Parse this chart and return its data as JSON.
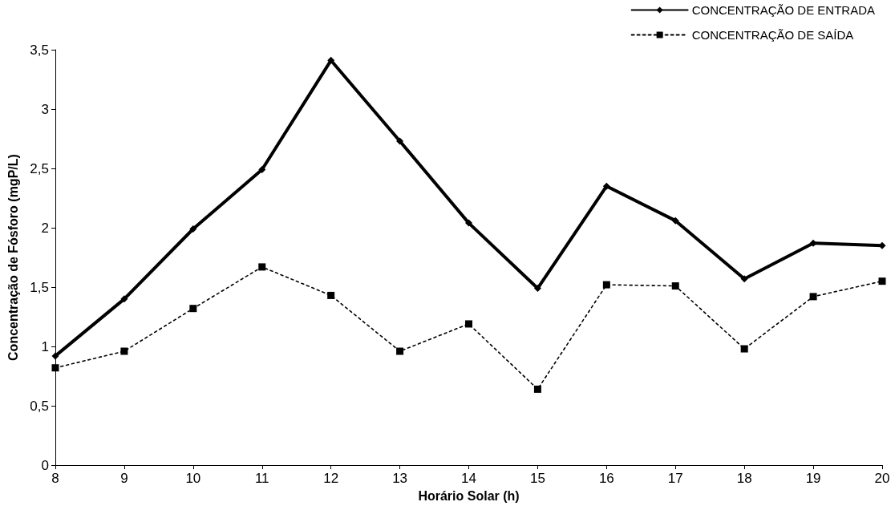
{
  "chart_data": {
    "type": "line",
    "xlabel": "Horário Solar (h)",
    "ylabel": "Concentração de Fósforo (mgP/L)",
    "x": [
      8,
      9,
      10,
      11,
      12,
      13,
      14,
      15,
      16,
      17,
      18,
      19,
      20
    ],
    "series": [
      {
        "name": "CONCENTRAÇÃO DE ENTRADA",
        "color": "#000000",
        "marker": "diamond",
        "line_style": "solid",
        "values": [
          0.92,
          1.4,
          1.99,
          2.49,
          3.41,
          2.73,
          2.04,
          1.49,
          2.35,
          2.06,
          1.57,
          1.87,
          1.85
        ]
      },
      {
        "name": "CONCENTRAÇÃO DE SAÍDA",
        "color": "#000000",
        "marker": "square",
        "line_style": "dotted",
        "values": [
          0.82,
          0.96,
          1.32,
          1.67,
          1.43,
          0.96,
          1.19,
          0.64,
          1.52,
          1.51,
          0.98,
          1.42,
          1.55
        ]
      }
    ],
    "xlim": [
      8,
      20
    ],
    "xticks": [
      8,
      9,
      10,
      11,
      12,
      13,
      14,
      15,
      16,
      17,
      18,
      19,
      20
    ],
    "ylim": [
      0,
      3.5
    ],
    "yticks": [
      0,
      {
        "value": 0.5,
        "label": "0,5"
      },
      1,
      {
        "value": 1.5,
        "label": "1,5"
      },
      2,
      {
        "value": 2.5,
        "label": "2,5"
      },
      3,
      {
        "value": 3.5,
        "label": "3,5"
      }
    ],
    "grid": false,
    "legend": "top right"
  }
}
